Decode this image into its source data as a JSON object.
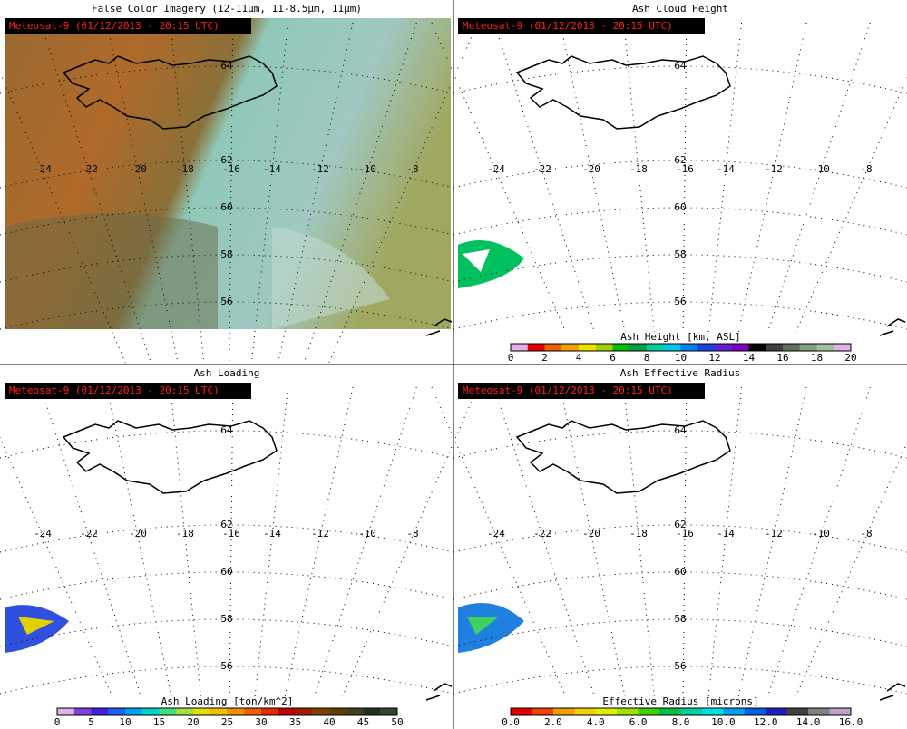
{
  "panels": [
    {
      "title": "False Color Imagery (12-11µm, 11-8.5µm, 11µm)",
      "badge": "Meteosat-9  (01/12/2013 - 20:15 UTC)",
      "lon_labels": [
        "-24",
        "-22",
        "-20",
        "-18",
        "-16",
        "-14",
        "-12",
        "-10",
        "-8"
      ],
      "lat_labels": [
        "64",
        "62",
        "60",
        "58",
        "56"
      ]
    },
    {
      "title": "Ash Cloud Height",
      "badge": "Meteosat-9  (01/12/2013 - 20:15 UTC)",
      "lon_labels": [
        "-24",
        "-22",
        "-20",
        "-18",
        "-16",
        "-14",
        "-12",
        "-10",
        "-8"
      ],
      "lat_labels": [
        "64",
        "62",
        "60",
        "58",
        "56"
      ],
      "colorbar": {
        "label": "Ash Height [km, ASL]",
        "ticks": [
          "0",
          "2",
          "4",
          "6",
          "8",
          "10",
          "12",
          "14",
          "16",
          "18",
          "20"
        ],
        "colors": [
          "#e0b0e8",
          "#e00000",
          "#e86000",
          "#f0a000",
          "#f0e000",
          "#a0d000",
          "#00c000",
          "#00a040",
          "#00d0a0",
          "#00c8e8",
          "#0080f0",
          "#2040e0",
          "#6020d0",
          "#8000c0",
          "#000000",
          "#404040",
          "#607060",
          "#80a080",
          "#a0c0a0",
          "#e0b0e8"
        ]
      }
    },
    {
      "title": "Ash Loading",
      "badge": "Meteosat-9  (01/12/2013 - 20:15 UTC)",
      "lon_labels": [
        "-24",
        "-22",
        "-20",
        "-18",
        "-16",
        "-14",
        "-12",
        "-10",
        "-8"
      ],
      "lat_labels": [
        "64",
        "62",
        "60",
        "58",
        "56"
      ],
      "colorbar": {
        "label": "Ash Loading [ton/km^2]",
        "ticks": [
          "0",
          "5",
          "10",
          "15",
          "20",
          "25",
          "30",
          "35",
          "40",
          "45",
          "50"
        ],
        "colors": [
          "#e0b0e8",
          "#8040e0",
          "#4020e0",
          "#2060f0",
          "#00a0f0",
          "#00d0d0",
          "#40e080",
          "#a0e040",
          "#e0e000",
          "#f0c000",
          "#f09000",
          "#f06000",
          "#e03000",
          "#c00000",
          "#a02000",
          "#804000",
          "#604000",
          "#404020",
          "#203020",
          "#304830"
        ]
      }
    },
    {
      "title": "Ash Effective Radius",
      "badge": "Meteosat-9  (01/12/2013 - 20:15 UTC)",
      "lon_labels": [
        "-24",
        "-22",
        "-20",
        "-18",
        "-16",
        "-14",
        "-12",
        "-10",
        "-8"
      ],
      "lat_labels": [
        "64",
        "62",
        "60",
        "58",
        "56"
      ],
      "colorbar": {
        "label": "Effective Radius [microns]",
        "ticks": [
          "0.0",
          "2.0",
          "4.0",
          "6.0",
          "8.0",
          "10.0",
          "12.0",
          "14.0",
          "16.0"
        ],
        "colors": [
          "#e00000",
          "#f04000",
          "#f0a000",
          "#f0d000",
          "#e0f000",
          "#a0e000",
          "#40d000",
          "#00c040",
          "#00d0a0",
          "#00e0e0",
          "#00a0f0",
          "#0060e0",
          "#2020c0",
          "#404040",
          "#808080",
          "#c0a0d0"
        ]
      }
    }
  ]
}
